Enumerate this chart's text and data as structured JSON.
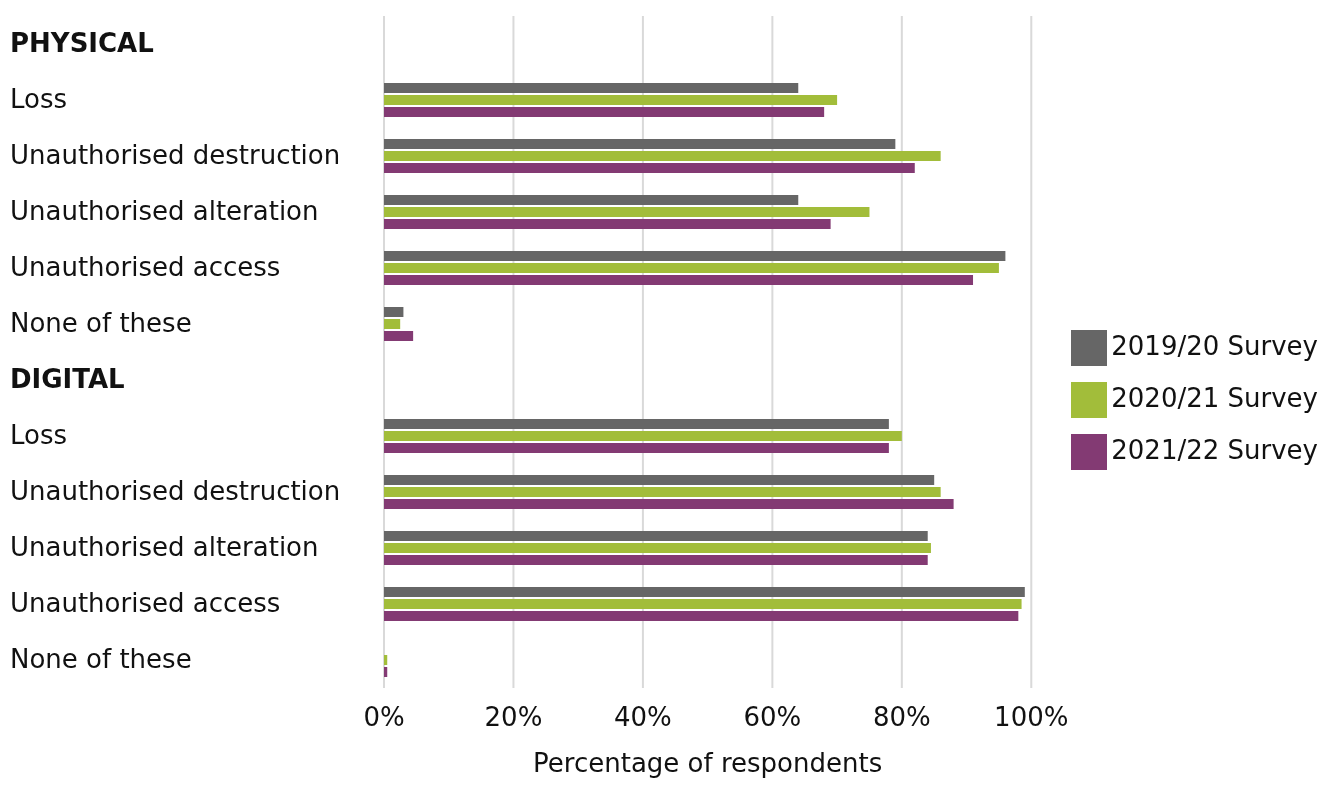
{
  "chart_data": {
    "type": "bar",
    "orientation": "horizontal",
    "xlabel": "Percentage of respondents",
    "categories": [
      "PHYSICAL",
      "Loss",
      "Unauthorised destruction",
      "Unauthorised alteration",
      "Unauthorised access",
      "None of these",
      "DIGITAL",
      "Loss",
      "Unauthorised destruction",
      "Unauthorised alteration",
      "Unauthorised access",
      "None of these"
    ],
    "series": [
      {
        "name": "2019/20 Survey",
        "color": "#666666",
        "values": [
          null,
          64,
          79,
          64,
          96,
          3,
          null,
          78,
          85,
          84,
          99,
          0
        ]
      },
      {
        "name": "2020/21 Survey",
        "color": "#a2bd3a",
        "values": [
          null,
          70,
          86,
          75,
          95,
          2.5,
          null,
          80,
          86,
          84.5,
          98.5,
          0.5
        ]
      },
      {
        "name": "2021/22 Survey",
        "color": "#833a73",
        "values": [
          null,
          68,
          82,
          69,
          91,
          4.5,
          null,
          78,
          88,
          84,
          98,
          0.5
        ]
      }
    ],
    "xlim": [
      0,
      100
    ],
    "xticks": [
      {
        "value": 0,
        "label": "0%"
      },
      {
        "value": 20,
        "label": "20%"
      },
      {
        "value": 40,
        "label": "40%"
      },
      {
        "value": 60,
        "label": "60%"
      },
      {
        "value": 80,
        "label": "80%"
      },
      {
        "value": 100,
        "label": "100%"
      }
    ],
    "grid": "x",
    "legend": "right"
  }
}
